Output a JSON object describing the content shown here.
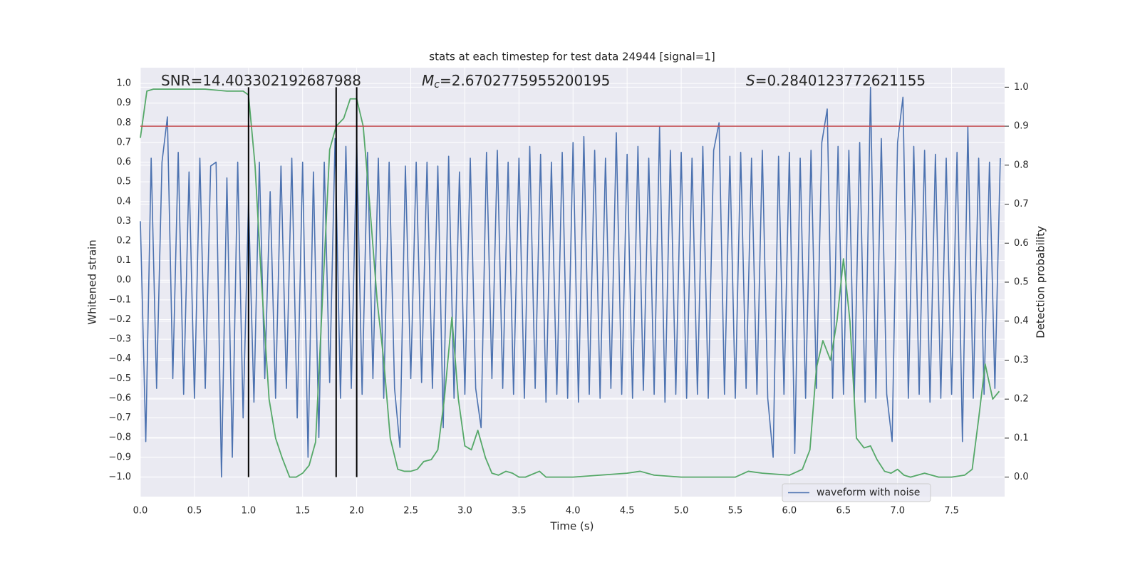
{
  "chart_data": {
    "type": "line",
    "title": "stats at each timestep for test data 24944 [signal=1]",
    "xlabel": "Time (s)",
    "ylabel": "Whitened strain",
    "y2label": "Detection probability",
    "xlim": [
      0,
      7.99
    ],
    "ylim": [
      -1.1,
      1.08
    ],
    "y2lim": [
      -0.05,
      1.05
    ],
    "xticks": [
      {
        "value": 0,
        "label": "0.0"
      },
      0.5,
      {
        "value": 1,
        "label": "1.0"
      },
      1.5,
      {
        "value": 2,
        "label": "2.0"
      },
      2.5,
      {
        "value": 3,
        "label": "3.0"
      },
      3.5,
      {
        "value": 4,
        "label": "4.0"
      },
      4.5,
      {
        "value": 5,
        "label": "5.0"
      },
      5.5,
      {
        "value": 6,
        "label": "6.0"
      },
      6.5,
      {
        "value": 7,
        "label": "7.0"
      },
      7.5
    ],
    "yticks": [
      {
        "value": -1,
        "label": "−1.0"
      },
      {
        "value": -0.9,
        "label": "−0.9"
      },
      {
        "value": -0.8,
        "label": "−0.8"
      },
      {
        "value": -0.7,
        "label": "−0.7"
      },
      {
        "value": -0.6,
        "label": "−0.6"
      },
      {
        "value": -0.5,
        "label": "−0.5"
      },
      {
        "value": -0.4,
        "label": "−0.4"
      },
      {
        "value": -0.3,
        "label": "−0.3"
      },
      {
        "value": -0.2,
        "label": "−0.2"
      },
      {
        "value": -0.1,
        "label": "−0.1"
      },
      {
        "value": 0,
        "label": "0.0"
      },
      0.1,
      0.2,
      0.3,
      0.4,
      0.5,
      0.6,
      0.7,
      0.8,
      0.9,
      {
        "value": 1,
        "label": "1.0"
      }
    ],
    "y2ticks": [
      {
        "value": 0,
        "label": "0.0"
      },
      0.1,
      0.2,
      0.3,
      0.4,
      0.5,
      0.6,
      0.7,
      0.8,
      0.9,
      {
        "value": 1,
        "label": "1.0"
      }
    ],
    "grid": true,
    "legend": "lower right",
    "annotations": [
      {
        "symbol": "SNR",
        "italic": false,
        "text": "=14.403302192687988"
      },
      {
        "symbol": "M",
        "subscript": "c",
        "italic": true,
        "text": "=2.6702775955200195"
      },
      {
        "symbol": "S",
        "italic": true,
        "text": "=0.2840123772621155"
      }
    ],
    "vlines": [
      1.0,
      1.81,
      2.0
    ],
    "vline_color": "#000000",
    "hline": {
      "value": 0.9,
      "axis": "y2",
      "color": "#c44e52"
    },
    "series": [
      {
        "name": "waveform with noise",
        "color": "#4c72b0",
        "x": [
          0,
          0.05,
          0.1,
          0.15,
          0.2,
          0.25,
          0.3,
          0.35,
          0.4,
          0.45,
          0.5,
          0.55,
          0.6,
          0.65,
          0.7,
          0.75,
          0.8,
          0.85,
          0.9,
          0.95,
          1.0,
          1.05,
          1.1,
          1.15,
          1.2,
          1.25,
          1.3,
          1.35,
          1.4,
          1.45,
          1.5,
          1.55,
          1.6,
          1.65,
          1.7,
          1.75,
          1.8,
          1.85,
          1.9,
          1.95,
          2.0,
          2.05,
          2.1,
          2.15,
          2.2,
          2.25,
          2.3,
          2.35,
          2.4,
          2.45,
          2.5,
          2.55,
          2.6,
          2.65,
          2.7,
          2.75,
          2.8,
          2.85,
          2.9,
          2.95,
          3.0,
          3.05,
          3.1,
          3.15,
          3.2,
          3.25,
          3.3,
          3.35,
          3.4,
          3.45,
          3.5,
          3.55,
          3.6,
          3.65,
          3.7,
          3.75,
          3.8,
          3.85,
          3.9,
          3.95,
          4.0,
          4.05,
          4.1,
          4.15,
          4.2,
          4.25,
          4.3,
          4.35,
          4.4,
          4.45,
          4.5,
          4.55,
          4.6,
          4.65,
          4.7,
          4.75,
          4.8,
          4.85,
          4.9,
          4.95,
          5.0,
          5.05,
          5.1,
          5.15,
          5.2,
          5.25,
          5.3,
          5.35,
          5.4,
          5.45,
          5.5,
          5.55,
          5.6,
          5.65,
          5.7,
          5.75,
          5.8,
          5.85,
          5.9,
          5.95,
          6.0,
          6.05,
          6.1,
          6.15,
          6.2,
          6.25,
          6.3,
          6.35,
          6.4,
          6.45,
          6.5,
          6.55,
          6.6,
          6.65,
          6.7,
          6.75,
          6.8,
          6.85,
          6.9,
          6.95,
          7.0,
          7.05,
          7.1,
          7.15,
          7.2,
          7.25,
          7.3,
          7.35,
          7.4,
          7.45,
          7.5,
          7.55,
          7.6,
          7.65,
          7.7,
          7.75,
          7.8,
          7.85,
          7.9,
          7.95
        ],
        "values": [
          0.3,
          -0.82,
          0.62,
          -0.55,
          0.6,
          0.83,
          -0.5,
          0.65,
          -0.58,
          0.55,
          -0.6,
          0.62,
          -0.55,
          0.58,
          0.6,
          -1.0,
          0.52,
          -0.9,
          0.6,
          -0.7,
          0.4,
          -0.62,
          0.6,
          -0.5,
          0.45,
          -0.6,
          0.58,
          -0.55,
          0.62,
          -0.7,
          0.6,
          -0.9,
          0.55,
          -0.8,
          0.6,
          -0.52,
          0.72,
          -0.6,
          0.68,
          -0.55,
          0.7,
          -0.58,
          0.65,
          -0.5,
          0.62,
          -0.6,
          0.6,
          -0.55,
          -0.85,
          0.58,
          -0.5,
          0.6,
          -0.52,
          0.6,
          -0.55,
          0.58,
          -0.75,
          0.63,
          -0.6,
          0.55,
          -0.58,
          0.62,
          -0.55,
          -0.75,
          0.65,
          -0.5,
          0.66,
          -0.55,
          0.6,
          -0.58,
          0.62,
          -0.6,
          0.68,
          -0.55,
          0.64,
          -0.62,
          0.6,
          -0.58,
          0.65,
          -0.6,
          0.7,
          -0.62,
          0.73,
          -0.58,
          0.66,
          -0.6,
          0.62,
          -0.55,
          0.75,
          -0.58,
          0.64,
          -0.6,
          0.68,
          -0.56,
          0.62,
          -0.58,
          0.78,
          -0.62,
          0.66,
          -0.58,
          0.65,
          -0.6,
          0.62,
          -0.58,
          0.68,
          -0.6,
          0.66,
          0.8,
          -0.58,
          0.63,
          -0.6,
          0.65,
          -0.55,
          0.62,
          -0.58,
          0.66,
          -0.6,
          -0.9,
          0.63,
          -0.58,
          0.65,
          -0.88,
          0.62,
          -0.6,
          0.66,
          -0.55,
          0.7,
          0.87,
          -0.6,
          0.68,
          -0.58,
          0.66,
          -0.6,
          0.7,
          -0.62,
          0.98,
          -0.6,
          0.72,
          -0.58,
          -0.82,
          0.7,
          0.93,
          -0.6,
          0.68,
          -0.58,
          0.66,
          -0.62,
          0.64,
          -0.6,
          0.62,
          -0.58,
          0.65,
          -0.82,
          0.78,
          -0.6,
          0.62,
          -0.58,
          0.6,
          -0.55,
          0.62
        ]
      },
      {
        "axis": "y2",
        "color": "#55a868",
        "x": [
          0,
          0.06,
          0.12,
          0.3,
          0.6,
          0.8,
          0.95,
          1.0,
          1.06,
          1.12,
          1.19,
          1.25,
          1.31,
          1.38,
          1.44,
          1.5,
          1.56,
          1.62,
          1.75,
          1.81,
          1.88,
          1.94,
          2.0,
          2.06,
          2.12,
          2.19,
          2.25,
          2.31,
          2.38,
          2.44,
          2.5,
          2.56,
          2.62,
          2.69,
          2.75,
          2.81,
          2.88,
          2.94,
          3.0,
          3.06,
          3.12,
          3.19,
          3.25,
          3.31,
          3.38,
          3.44,
          3.5,
          3.56,
          3.69,
          3.75,
          4.0,
          4.25,
          4.5,
          4.62,
          4.75,
          5.0,
          5.5,
          5.62,
          5.75,
          6.0,
          6.12,
          6.19,
          6.25,
          6.31,
          6.38,
          6.44,
          6.5,
          6.56,
          6.62,
          6.69,
          6.75,
          6.81,
          6.88,
          6.94,
          7.0,
          7.06,
          7.12,
          7.25,
          7.38,
          7.5,
          7.62,
          7.69,
          7.75,
          7.81,
          7.88,
          7.94
        ],
        "values": [
          0.87,
          0.99,
          0.995,
          0.995,
          0.995,
          0.99,
          0.99,
          0.98,
          0.8,
          0.5,
          0.2,
          0.1,
          0.05,
          0.0,
          0.0,
          0.01,
          0.03,
          0.09,
          0.84,
          0.9,
          0.92,
          0.97,
          0.97,
          0.9,
          0.7,
          0.45,
          0.3,
          0.1,
          0.02,
          0.015,
          0.015,
          0.02,
          0.04,
          0.045,
          0.07,
          0.2,
          0.41,
          0.2,
          0.08,
          0.07,
          0.12,
          0.05,
          0.01,
          0.005,
          0.015,
          0.01,
          0.0,
          0.0,
          0.015,
          0.0,
          0.0,
          0.005,
          0.01,
          0.015,
          0.005,
          0.0,
          0.0,
          0.015,
          0.01,
          0.005,
          0.02,
          0.07,
          0.28,
          0.35,
          0.3,
          0.4,
          0.56,
          0.4,
          0.1,
          0.075,
          0.08,
          0.045,
          0.015,
          0.01,
          0.02,
          0.005,
          0.0,
          0.01,
          0.0,
          0.0,
          0.005,
          0.02,
          0.15,
          0.29,
          0.2,
          0.22
        ]
      }
    ]
  }
}
